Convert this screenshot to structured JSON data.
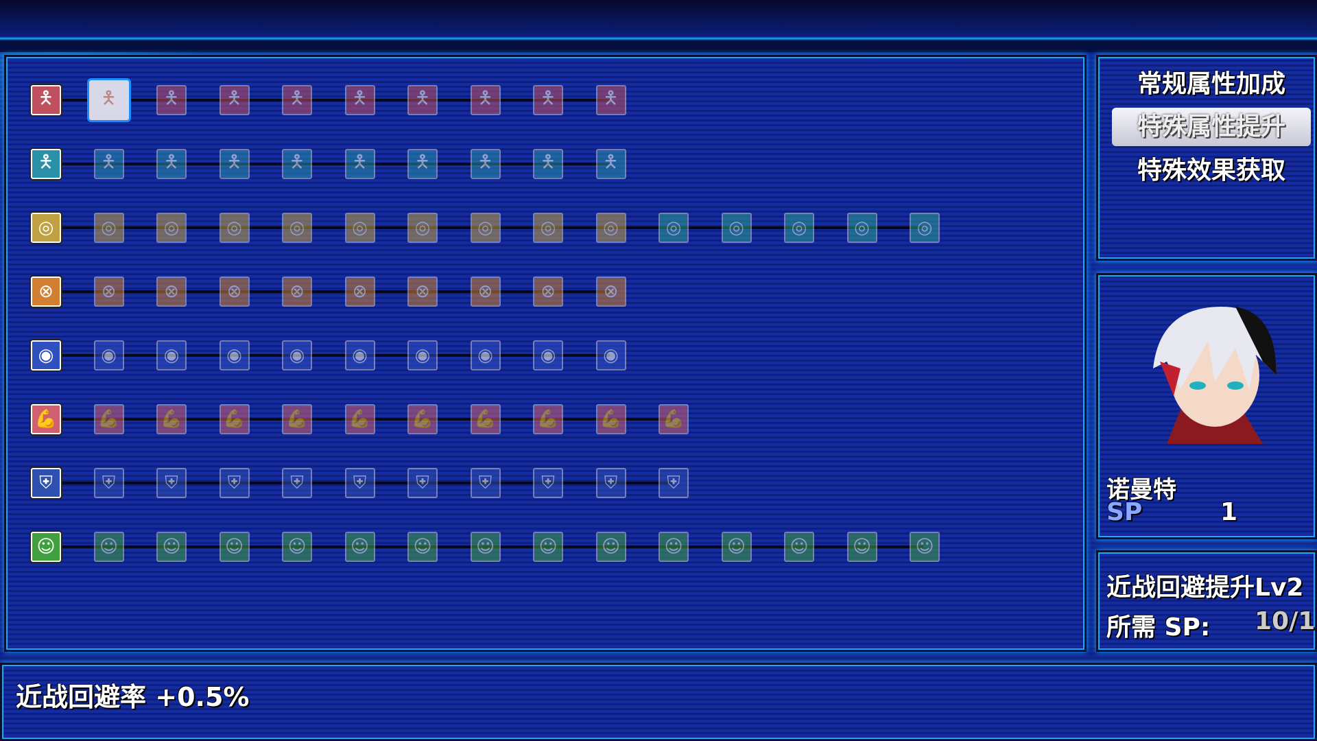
{
  "menu": {
    "items": [
      {
        "label": "常规属性加成",
        "active": false
      },
      {
        "label": "特殊属性提升",
        "active": true
      },
      {
        "label": "特殊效果获取",
        "active": false
      }
    ]
  },
  "character": {
    "name": "诺曼特",
    "sp_label": "SP",
    "sp_value": "1"
  },
  "skill": {
    "title": "近战回避提升Lv2",
    "cost_label": "所需 SP:",
    "cost_value": "10/1"
  },
  "description": "近战回避率 +0.5%",
  "skill_tree": [
    {
      "icon": "body-red-icon",
      "glyph": "🯅",
      "color": "#c05060",
      "nodes": 9,
      "selected": 0
    },
    {
      "icon": "body-teal-icon",
      "glyph": "🯅",
      "color": "#2a90a8",
      "nodes": 9
    },
    {
      "icon": "crosshair-gold-icon",
      "glyph": "◎",
      "color": "#c0a040",
      "nodes": 14,
      "alt_from": 9,
      "alt_color": "#2aa090"
    },
    {
      "icon": "target-orange-icon",
      "glyph": "⊗",
      "color": "#d08030",
      "nodes": 9
    },
    {
      "icon": "eye-shield-icon",
      "glyph": "◉",
      "color": "#3050c0",
      "nodes": 9
    },
    {
      "icon": "muscle-arm-icon",
      "glyph": "💪",
      "color": "#d06070",
      "nodes": 10
    },
    {
      "icon": "armor-blue-icon",
      "glyph": "⛨",
      "color": "#3050b0",
      "nodes": 10
    },
    {
      "icon": "mask-green-icon",
      "glyph": "☺",
      "color": "#40a040",
      "nodes": 14
    }
  ]
}
